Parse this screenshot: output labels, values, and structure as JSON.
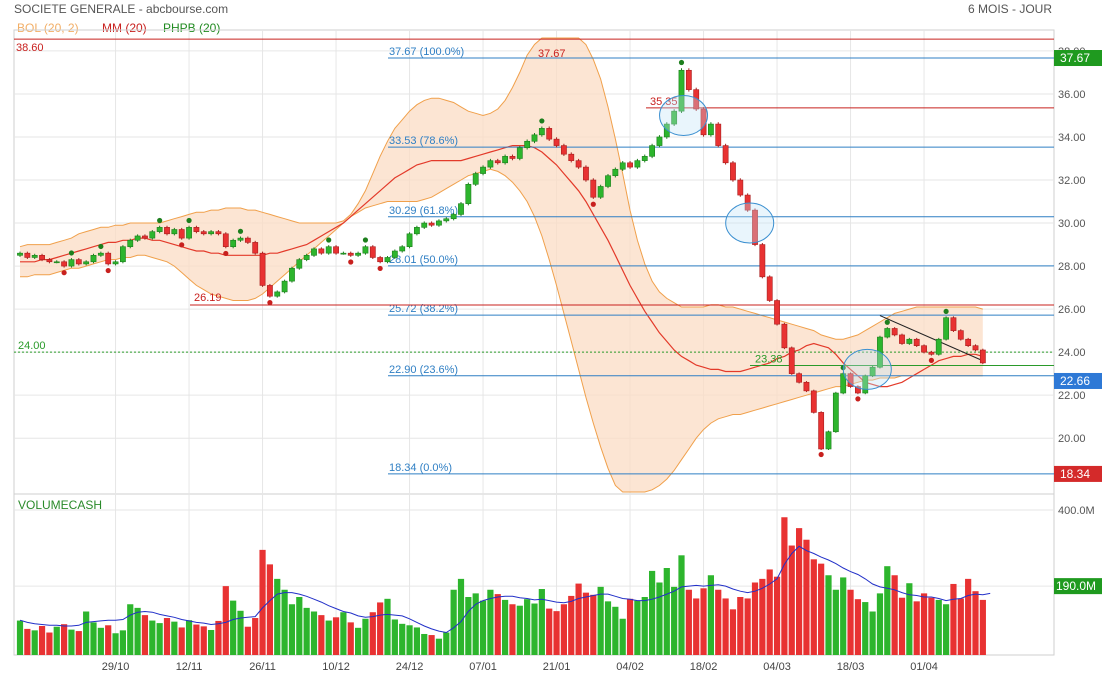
{
  "header": {
    "title": "SOCIETE GENERALE - abcbourse.com",
    "period": "6 MOIS - JOUR"
  },
  "legend": {
    "bollinger": "BOL (20, 2)",
    "ma": "MM (20)",
    "phpb": "PHPB (20)"
  },
  "colors": {
    "up": "#2db52d",
    "down": "#e83232",
    "bollinger_fill": "#fbdcc4",
    "bollinger_line": "#f0a04b",
    "ma_line": "#e33a2a",
    "fib_line": "#2f7fc4",
    "level_red": "#c8201e",
    "level_green": "#2a9a2a",
    "volume_ma": "#2230c8"
  },
  "chart_data": [
    {
      "type": "candlestick",
      "title": "SOCIETE GENERALE",
      "ylim": [
        17.5,
        38.6
      ],
      "y_ticks": [
        "20.00",
        "22.00",
        "24.00",
        "26.00",
        "28.00",
        "30.00",
        "32.00",
        "34.00",
        "36.00",
        "38.00"
      ],
      "x_tick_labels": [
        "29/10",
        "12/11",
        "26/11",
        "10/12",
        "24/12",
        "07/01",
        "21/01",
        "04/02",
        "18/02",
        "04/03",
        "18/03",
        "01/04"
      ],
      "x_tick_index": [
        13,
        23,
        33,
        43,
        53,
        63,
        73,
        83,
        93,
        103,
        113,
        123
      ],
      "close": [
        28.6,
        28.4,
        28.5,
        28.3,
        28.2,
        28.2,
        28.0,
        28.3,
        28.1,
        28.2,
        28.5,
        28.6,
        28.1,
        28.2,
        28.9,
        29.2,
        29.4,
        29.3,
        29.6,
        29.8,
        29.5,
        29.7,
        29.3,
        29.8,
        29.6,
        29.5,
        29.6,
        29.5,
        28.9,
        29.2,
        29.3,
        29.1,
        28.6,
        27.1,
        26.6,
        26.8,
        27.3,
        27.9,
        28.3,
        28.5,
        28.8,
        28.6,
        28.9,
        28.6,
        28.6,
        28.5,
        28.6,
        28.9,
        28.4,
        28.2,
        28.4,
        28.7,
        28.9,
        29.5,
        29.8,
        30.0,
        29.9,
        30.1,
        30.2,
        30.4,
        30.9,
        31.8,
        32.3,
        32.6,
        32.9,
        32.8,
        33.1,
        33.0,
        33.5,
        33.8,
        34.1,
        34.4,
        33.9,
        33.6,
        33.2,
        32.9,
        32.6,
        32.0,
        31.2,
        31.7,
        32.2,
        32.5,
        32.8,
        32.6,
        32.9,
        33.1,
        33.6,
        34.0,
        34.6,
        35.2,
        37.1,
        36.2,
        35.3,
        34.1,
        34.6,
        33.6,
        32.8,
        32.0,
        31.3,
        30.6,
        29.0,
        27.5,
        26.4,
        25.3,
        24.2,
        23.0,
        22.6,
        22.2,
        21.2,
        19.5,
        20.3,
        22.1,
        23.0,
        22.4,
        22.1,
        22.9,
        23.3,
        24.7,
        25.1,
        24.8,
        24.4,
        24.6,
        24.3,
        24.0,
        23.9,
        24.6,
        25.6,
        25.0,
        24.6,
        24.3,
        24.1,
        23.5
      ],
      "ohlc_rule": "open = previous close; high/low extend 0.25% beyond body"
    },
    {
      "type": "line",
      "series": [
        {
          "name": "MM (20)",
          "values": [
            28.2,
            28.2,
            28.2,
            28.3,
            28.3,
            28.4,
            28.5,
            28.6,
            28.7,
            28.8,
            28.9,
            29.0,
            29.1,
            29.1,
            29.2,
            29.2,
            29.3,
            29.3,
            29.2,
            29.2,
            29.1,
            29.0,
            28.9,
            28.8,
            28.7,
            28.7,
            28.6,
            28.6,
            28.5,
            28.5,
            28.5,
            28.5,
            28.5,
            28.5,
            28.6,
            28.6,
            28.7,
            28.8,
            28.9,
            29.0,
            29.2,
            29.4,
            29.6,
            29.8,
            30.0,
            30.3,
            30.6,
            30.9,
            31.2,
            31.5,
            31.8,
            32.1,
            32.3,
            32.5,
            32.7,
            32.8,
            32.9,
            32.9,
            32.9,
            32.9,
            32.9,
            33.0,
            33.1,
            33.2,
            33.3,
            33.4,
            33.5,
            33.6,
            33.6,
            33.6,
            33.5,
            33.3,
            33.0,
            32.7,
            32.3,
            31.9,
            31.5,
            31.0,
            30.4,
            29.8,
            29.2,
            28.5,
            27.8,
            27.1,
            26.5,
            25.9,
            25.4,
            24.9,
            24.5,
            24.1,
            23.8,
            23.6,
            23.4,
            23.3,
            23.2,
            23.2,
            23.1,
            23.1,
            23.1,
            23.2,
            23.3,
            23.4,
            23.5,
            23.7,
            23.8,
            24.0,
            24.1,
            24.3,
            24.4,
            24.3,
            24.2,
            23.9,
            23.5,
            23.2,
            22.9,
            22.6,
            22.5,
            22.4,
            22.4,
            22.5,
            22.6,
            22.8,
            23.0,
            23.2,
            23.4,
            23.6,
            23.7,
            23.8,
            23.8,
            23.9,
            23.9,
            23.8
          ]
        },
        {
          "name": "BOL (20, 2) upper",
          "values": [
            28.9,
            29.0,
            29.0,
            29.0,
            29.0,
            29.1,
            29.2,
            29.3,
            29.5,
            29.6,
            29.7,
            29.8,
            29.8,
            29.9,
            29.9,
            30.0,
            30.0,
            30.0,
            30.0,
            30.0,
            30.1,
            30.2,
            30.3,
            30.4,
            30.5,
            30.5,
            30.6,
            30.6,
            30.7,
            30.7,
            30.7,
            30.6,
            30.6,
            30.5,
            30.4,
            30.3,
            30.2,
            30.1,
            30.0,
            30.0,
            30.0,
            30.0,
            30.0,
            30.0,
            30.1,
            30.4,
            30.9,
            31.5,
            32.3,
            33.1,
            33.8,
            34.4,
            34.8,
            35.2,
            35.5,
            35.7,
            35.8,
            35.8,
            35.7,
            35.6,
            35.4,
            35.2,
            35.1,
            35.0,
            35.1,
            35.3,
            35.7,
            36.3,
            37.0,
            37.8,
            38.3,
            38.6,
            38.6,
            38.6,
            38.6,
            38.6,
            38.6,
            38.3,
            37.6,
            36.7,
            35.4,
            33.9,
            32.3,
            30.6,
            29.2,
            28.1,
            27.3,
            26.8,
            26.5,
            26.3,
            26.1,
            26.1,
            26.1,
            26.1,
            26.2,
            26.2,
            26.1,
            26.1,
            26.0,
            25.9,
            25.8,
            25.7,
            25.6,
            25.5,
            25.4,
            25.3,
            25.2,
            25.1,
            25.0,
            24.8,
            24.7,
            24.6,
            24.6,
            24.7,
            24.8,
            25.0,
            25.2,
            25.4,
            25.6,
            25.8,
            25.9,
            26.0,
            26.1,
            26.1,
            26.1,
            26.1,
            26.1,
            26.1,
            26.1,
            26.1,
            26.1,
            26.0
          ]
        },
        {
          "name": "BOL (20, 2) lower",
          "values": [
            27.5,
            27.5,
            27.6,
            27.6,
            27.6,
            27.7,
            27.8,
            27.9,
            27.9,
            28.0,
            28.1,
            28.2,
            28.3,
            28.3,
            28.4,
            28.4,
            28.5,
            28.5,
            28.4,
            28.3,
            28.2,
            28.0,
            27.7,
            27.4,
            27.1,
            26.9,
            26.7,
            26.6,
            26.5,
            26.4,
            26.4,
            26.4,
            26.5,
            26.7,
            27.0,
            27.3,
            27.6,
            27.9,
            28.2,
            28.5,
            28.8,
            29.1,
            29.4,
            29.7,
            30.0,
            30.3,
            30.5,
            30.7,
            30.8,
            30.9,
            31.0,
            31.0,
            31.0,
            31.0,
            31.0,
            31.1,
            31.2,
            31.4,
            31.6,
            31.8,
            32.0,
            32.2,
            32.3,
            32.4,
            32.5,
            32.4,
            32.2,
            31.9,
            31.5,
            31.0,
            30.3,
            29.4,
            28.3,
            27.1,
            25.8,
            24.5,
            23.2,
            21.9,
            20.7,
            19.6,
            18.6,
            17.8,
            17.5,
            17.5,
            17.5,
            17.5,
            17.6,
            17.8,
            18.1,
            18.5,
            19.0,
            19.5,
            20.0,
            20.4,
            20.7,
            20.9,
            21.0,
            21.1,
            21.1,
            21.2,
            21.3,
            21.4,
            21.5,
            21.6,
            21.7,
            21.8,
            21.9,
            22.0,
            22.1,
            22.2,
            22.3,
            22.4,
            22.4,
            22.5,
            22.6,
            22.7,
            22.7,
            22.8,
            22.8,
            22.8,
            22.9,
            22.9,
            22.9,
            22.9,
            22.9,
            22.9,
            22.9,
            22.9,
            22.9,
            22.9,
            22.9,
            22.9
          ]
        }
      ]
    },
    {
      "type": "bar",
      "title": "VOLUMECASH",
      "y_ticks": [
        "190.0M",
        "400.0M"
      ],
      "ylim": [
        0,
        400
      ],
      "values": [
        95,
        72,
        68,
        80,
        62,
        78,
        85,
        70,
        66,
        120,
        90,
        75,
        82,
        60,
        68,
        140,
        130,
        110,
        95,
        88,
        102,
        92,
        76,
        96,
        84,
        79,
        69,
        94,
        190,
        150,
        122,
        78,
        102,
        290,
        250,
        210,
        180,
        140,
        160,
        130,
        120,
        110,
        95,
        104,
        118,
        90,
        75,
        100,
        118,
        145,
        155,
        98,
        86,
        82,
        76,
        58,
        55,
        45,
        62,
        180,
        210,
        160,
        170,
        150,
        180,
        168,
        152,
        140,
        136,
        154,
        142,
        182,
        128,
        121,
        140,
        163,
        197,
        172,
        166,
        188,
        148,
        133,
        100,
        155,
        150,
        160,
        232,
        200,
        240,
        188,
        275,
        180,
        156,
        184,
        220,
        180,
        156,
        126,
        160,
        156,
        200,
        210,
        236,
        216,
        380,
        302,
        350,
        318,
        264,
        252,
        220,
        180,
        214,
        180,
        154,
        146,
        120,
        170,
        245,
        220,
        158,
        198,
        148,
        170,
        158,
        152,
        140,
        196,
        156,
        210,
        176,
        152,
        212
      ],
      "series": [
        {
          "name": "moving average",
          "values": [
            96,
            90,
            86,
            84,
            82,
            82,
            80,
            80,
            82,
            90,
            92,
            94,
            96,
            96,
            98,
            110,
            118,
            120,
            118,
            112,
            108,
            104,
            98,
            94,
            90,
            88,
            84,
            86,
            90,
            98,
            102,
            104,
            106,
            130,
            150,
            168,
            172,
            172,
            168,
            162,
            154,
            146,
            136,
            128,
            120,
            116,
            108,
            104,
            106,
            110,
            112,
            110,
            108,
            100,
            90,
            80,
            72,
            66,
            62,
            75,
            92,
            120,
            140,
            150,
            156,
            160,
            162,
            162,
            158,
            156,
            152,
            154,
            150,
            146,
            144,
            148,
            156,
            160,
            164,
            168,
            168,
            162,
            156,
            154,
            150,
            150,
            154,
            160,
            168,
            176,
            188,
            190,
            192,
            190,
            192,
            194,
            190,
            182,
            176,
            172,
            176,
            184,
            196,
            210,
            250,
            280,
            300,
            288,
            280,
            270,
            262,
            252,
            240,
            230,
            222,
            210,
            196,
            188,
            184,
            180,
            172,
            166,
            164,
            160,
            160,
            156,
            150,
            154,
            156,
            164,
            168,
            166,
            170
          ]
        }
      ]
    }
  ],
  "levels": [
    {
      "label": "38.60",
      "value": 38.55,
      "color": "#c8201e",
      "side": "left"
    },
    {
      "label": "26.19",
      "value": 26.19,
      "color": "#c8201e",
      "side": "left-mid"
    },
    {
      "label": "24.00",
      "value": 24.0,
      "color": "#2a9a2a",
      "side": "left",
      "dashed": true
    },
    {
      "label": "35.35",
      "value": 35.35,
      "color": "#c8201e",
      "side": "peak"
    },
    {
      "label": "23.38",
      "value": 23.38,
      "color": "#2a9a2a",
      "side": "recent"
    }
  ],
  "fibonacci": [
    {
      "label": "37.67  (100.0%)",
      "value": 37.67
    },
    {
      "label": "33.53  (78.6%)",
      "value": 33.53
    },
    {
      "label": "30.29  (61.8%)",
      "value": 30.29
    },
    {
      "label": "28.01  (50.0%)",
      "value": 28.01
    },
    {
      "label": "25.72  (38.2%)",
      "value": 25.72
    },
    {
      "label": "22.90  (23.6%)",
      "value": 22.9
    },
    {
      "label": "18.34  (0.0%)",
      "value": 18.34
    }
  ],
  "annotations": {
    "peak": "37.67",
    "right_labels": [
      {
        "text": "37.67",
        "value": 37.67,
        "bg": "#1f9a1f"
      },
      {
        "text": "22.66",
        "value": 22.66,
        "bg": "#2e79d6"
      },
      {
        "text": "18.34",
        "value": 18.34,
        "bg": "#d42a2a"
      }
    ],
    "volume_label": {
      "text": "190.0M",
      "value": 190,
      "bg": "#1f9a1f"
    }
  }
}
